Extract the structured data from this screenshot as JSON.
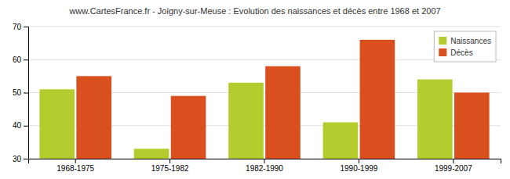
{
  "chart_data": {
    "type": "bar",
    "title": "www.CartesFrance.fr - Joigny-sur-Meuse : Evolution des naissances et décès entre 1968 et 2007",
    "categories": [
      "1968-1975",
      "1975-1982",
      "1982-1990",
      "1990-1999",
      "1999-2007"
    ],
    "series": [
      {
        "name": "Naissances",
        "color": "#b5cc2e",
        "values": [
          51,
          33,
          53,
          41,
          54
        ]
      },
      {
        "name": "Décès",
        "color": "#d94f1e",
        "values": [
          55,
          49,
          58,
          66,
          50
        ]
      }
    ],
    "ylim": [
      30,
      70
    ],
    "yticks": [
      30,
      40,
      50,
      60,
      70
    ],
    "grid": true,
    "legend": "upper right"
  }
}
